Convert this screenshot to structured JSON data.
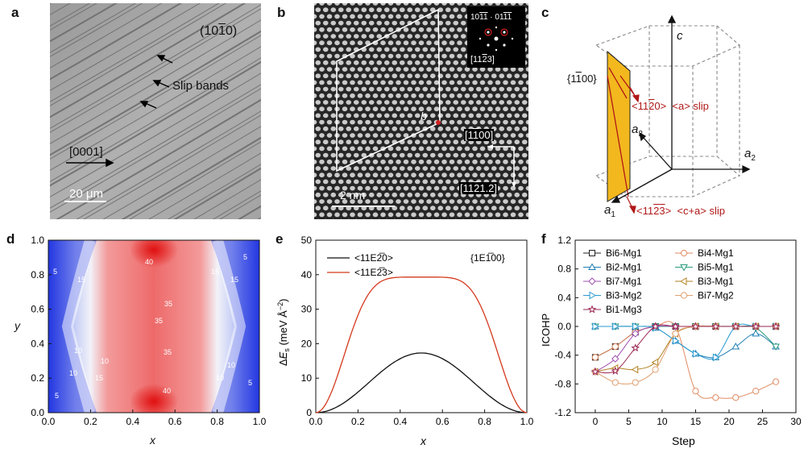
{
  "panels": {
    "a": {
      "letter": "a",
      "plane_label": "(10E1F0)",
      "plane_base": "(10",
      "plane_bar": "1",
      "plane_end": "0)",
      "annotation": "Slip bands",
      "direction_label": "[0001]",
      "scale_bar": "20 μm"
    },
    "b": {
      "letter": "b",
      "inset_spots": "10E1̅ · 01E1̅",
      "inset_top_parts": [
        "101",
        "1",
        " · 011",
        "1"
      ],
      "inset_zone": "[11E2̅3]",
      "burgers_label": "b",
      "dir1": "[1E1̅00]",
      "dir2": "[11E2̅1.2]",
      "scale_bar": "2 nm"
    },
    "c": {
      "letter": "c",
      "plane": "{1E1̅00}",
      "slip_a_dir": "<11E2̅0>",
      "slip_a_name": "<a> slip",
      "slip_ca_dir": "<11E2̅3>",
      "slip_ca_name": "<c+a> slip",
      "axis_c": "c",
      "axis_a1": "a",
      "axis_a2": "a",
      "axis_a3": "a",
      "sub1": "1",
      "sub2": "2",
      "sub3": "3"
    },
    "d": {
      "letter": "d",
      "xlabel": "x",
      "ylabel": "y",
      "contour_labels": [
        "40",
        "35",
        "35",
        "35",
        "40",
        "15",
        "15",
        "10",
        "10",
        "10",
        "5",
        "5",
        "5",
        "5",
        "10",
        "15",
        "15",
        "10"
      ]
    },
    "e": {
      "letter": "e"
    },
    "f": {
      "letter": "f"
    }
  },
  "chart_data": [
    {
      "type": "heatmap",
      "panel": "d",
      "xlabel": "x",
      "ylabel": "y",
      "xlim": [
        0.0,
        1.0
      ],
      "ylim": [
        0.0,
        1.0
      ],
      "xticks": [
        "0.0",
        "0.2",
        "0.4",
        "0.6",
        "0.8",
        "1.0"
      ],
      "yticks": [
        "0.0",
        "0.2",
        "0.4",
        "0.6",
        "0.8",
        "1.0"
      ],
      "colors": {
        "low": "#1a2fe0",
        "mid": "#ffffff",
        "high": "#e01818"
      },
      "contour_values": [
        5,
        10,
        15,
        35,
        40
      ]
    },
    {
      "type": "line",
      "panel": "e",
      "xlabel": "x",
      "ylabel": "ΔE_s (meV Å⁻²)",
      "ylabel_parts": {
        "delta": "Δ",
        "E": "E",
        "sub": "s",
        "unit": " (meV Å",
        "exp": "−2",
        "close": ")"
      },
      "xlim": [
        0.0,
        1.0
      ],
      "ylim": [
        0,
        50
      ],
      "xticks": [
        "0.0",
        "0.2",
        "0.4",
        "0.6",
        "0.8",
        "1.0"
      ],
      "yticks": [
        "0",
        "10",
        "20",
        "30",
        "40",
        "50"
      ],
      "plane_label": "{1E1̅00}",
      "series": [
        {
          "name": "<11E2̅0>",
          "color": "#111111",
          "peak": 17.3
        },
        {
          "name": "<11E2̅3>",
          "color": "#d43a1e",
          "peak": 39.3
        }
      ]
    },
    {
      "type": "line",
      "panel": "f",
      "xlabel": "Step",
      "ylabel": "ICOHP",
      "xlim": [
        -3,
        30
      ],
      "ylim": [
        -1.2,
        1.2
      ],
      "xticks": [
        "0",
        "5",
        "10",
        "15",
        "20",
        "25",
        "30"
      ],
      "yticks": [
        "1.2",
        "0.8",
        "0.4",
        "0.0",
        "-0.4",
        "-0.8",
        "-1.2"
      ],
      "series": [
        {
          "name": "Bi6-Mg1",
          "color": "#222222",
          "marker": "square",
          "x": [
            0,
            3,
            6,
            9,
            12,
            15,
            18,
            21,
            24,
            27
          ],
          "y": [
            -0.43,
            -0.28,
            -0.08,
            0.0,
            0.0,
            0.0,
            0.0,
            0.0,
            0.0,
            0.0
          ]
        },
        {
          "name": "Bi4-Mg1",
          "color": "#e08a60",
          "marker": "circle",
          "x": [
            0,
            3,
            6,
            9,
            12,
            15,
            18,
            21,
            24,
            27
          ],
          "y": [
            -0.43,
            -0.28,
            -0.08,
            0.0,
            0.0,
            -0.9,
            -0.99,
            -0.99,
            -0.9,
            -0.77
          ]
        },
        {
          "name": "Bi2-Mg1",
          "color": "#1f7fb5",
          "marker": "triangle-up",
          "x": [
            0,
            3,
            6,
            9,
            12,
            15,
            18,
            21,
            24,
            27
          ],
          "y": [
            0.0,
            0.0,
            0.0,
            -0.02,
            -0.2,
            -0.38,
            -0.43,
            -0.28,
            -0.1,
            -0.28
          ]
        },
        {
          "name": "Bi5-Mg1",
          "color": "#2a9a7e",
          "marker": "triangle-down",
          "x": [
            0,
            3,
            6,
            9,
            12,
            15,
            18,
            21,
            24,
            27
          ],
          "y": [
            0.0,
            0.0,
            0.0,
            0.0,
            0.0,
            0.0,
            0.0,
            0.0,
            -0.02,
            -0.28
          ]
        },
        {
          "name": "Bi7-Mg1",
          "color": "#a050b0",
          "marker": "diamond",
          "x": [
            0,
            3,
            6,
            9,
            12,
            15,
            18,
            21,
            24,
            27
          ],
          "y": [
            -0.63,
            -0.45,
            -0.1,
            0.0,
            0.0,
            0.0,
            0.0,
            0.0,
            0.0,
            0.0
          ]
        },
        {
          "name": "Bi3-Mg1",
          "color": "#b08020",
          "marker": "triangle-left",
          "x": [
            0,
            3,
            6,
            9,
            12,
            15,
            18,
            21,
            24,
            27
          ],
          "y": [
            -0.63,
            -0.58,
            -0.6,
            -0.5,
            -0.1,
            0.0,
            0.0,
            0.0,
            0.0,
            0.0
          ]
        },
        {
          "name": "Bi3-Mg2",
          "color": "#2a9ad0",
          "marker": "triangle-right",
          "x": [
            0,
            3,
            6,
            9,
            12,
            15,
            18,
            21,
            24,
            27
          ],
          "y": [
            0.0,
            0.0,
            0.0,
            -0.02,
            -0.2,
            -0.38,
            -0.43,
            0.0,
            0.0,
            0.0
          ]
        },
        {
          "name": "Bi7-Mg2",
          "color": "#e0a070",
          "marker": "circle-open",
          "x": [
            0,
            3,
            6,
            9,
            12,
            15,
            18,
            21,
            24,
            27
          ],
          "y": [
            -0.63,
            -0.78,
            -0.78,
            -0.6,
            -0.1,
            0.0,
            0.0,
            0.0,
            0.0,
            0.0
          ]
        },
        {
          "name": "Bi1-Mg3",
          "color": "#9a2550",
          "marker": "star",
          "x": [
            0,
            3,
            6,
            9,
            12,
            15,
            18,
            21,
            24,
            27
          ],
          "y": [
            -0.63,
            -0.62,
            -0.3,
            0.0,
            0.0,
            0.0,
            0.0,
            0.0,
            0.0,
            0.0
          ]
        }
      ]
    }
  ]
}
